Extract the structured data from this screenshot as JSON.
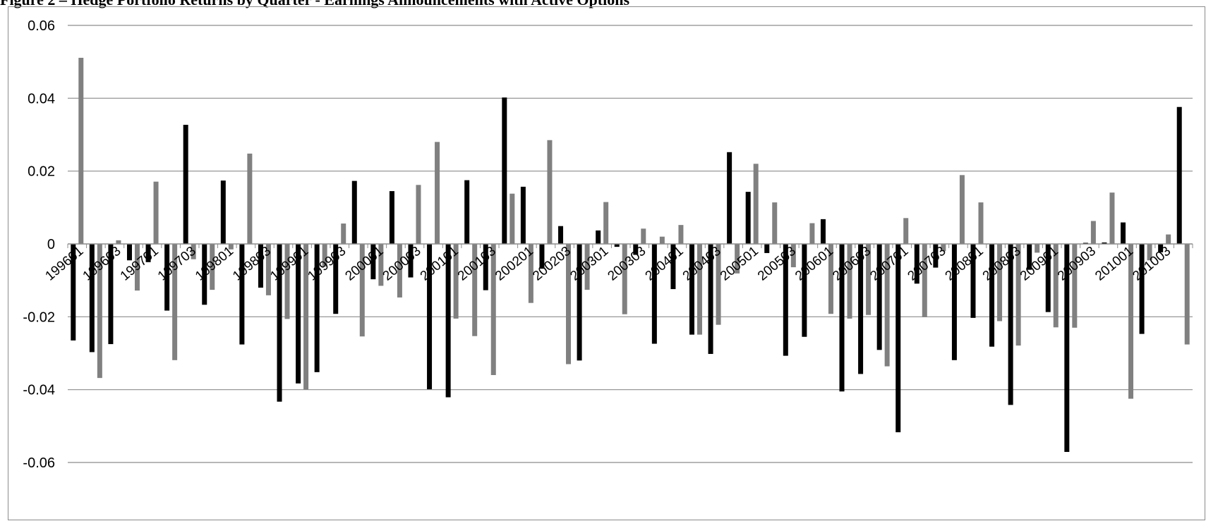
{
  "chart_data": {
    "type": "bar",
    "title": "Figure 2 – Hedge Portfolio Returns by Quarter - Earnings Announcements with Active Options",
    "xlabel": "",
    "ylabel": "",
    "ylim": [
      -0.06,
      0.06
    ],
    "y_ticks": [
      0.06,
      0.04,
      0.02,
      0,
      -0.02,
      -0.04,
      -0.06
    ],
    "y_tick_labels": [
      "0.06",
      "0.04",
      "0.02",
      "0",
      "-0.02",
      "-0.04",
      "-0.06"
    ],
    "grid": true,
    "legend": "none",
    "categories": [
      "199601",
      "199602",
      "199603",
      "199604",
      "199701",
      "199702",
      "199703",
      "199704",
      "199801",
      "199802",
      "199803",
      "199804",
      "199901",
      "199902",
      "199903",
      "199904",
      "200001",
      "200002",
      "200003",
      "200004",
      "200101",
      "200102",
      "200103",
      "200104",
      "200201",
      "200202",
      "200203",
      "200204",
      "200301",
      "200302",
      "200303",
      "200304",
      "200401",
      "200402",
      "200403",
      "200404",
      "200501",
      "200502",
      "200503",
      "200504",
      "200601",
      "200602",
      "200603",
      "200604",
      "200701",
      "200702",
      "200703",
      "200704",
      "200801",
      "200802",
      "200803",
      "200804",
      "200901",
      "200902",
      "200903",
      "200904",
      "201001",
      "201002",
      "201003",
      "201004"
    ],
    "x_tick_labels": [
      "199601",
      "199603",
      "199701",
      "199703",
      "199801",
      "199803",
      "199901",
      "199903",
      "200001",
      "200003",
      "200101",
      "200103",
      "200201",
      "200203",
      "200301",
      "200303",
      "200401",
      "200403",
      "200501",
      "200503",
      "200601",
      "200603",
      "200701",
      "200703",
      "200801",
      "200803",
      "200901",
      "200903",
      "201001",
      "201003"
    ],
    "series": [
      {
        "color": "#000000",
        "values": [
          -0.0265,
          -0.0297,
          -0.0275,
          -0.0045,
          -0.005,
          -0.0183,
          0.0327,
          -0.0167,
          0.0174,
          -0.0276,
          -0.012,
          -0.0433,
          -0.0383,
          -0.0352,
          -0.0192,
          0.0173,
          -0.0097,
          0.0145,
          -0.0092,
          -0.0399,
          -0.0421,
          0.0175,
          -0.0127,
          0.0402,
          0.0157,
          -0.0068,
          0.0049,
          -0.032,
          0.0037,
          -0.0008,
          -0.003,
          -0.0274,
          -0.0124,
          -0.0249,
          -0.0302,
          0.0252,
          0.0143,
          -0.0025,
          -0.0307,
          -0.0255,
          0.0068,
          -0.0405,
          -0.0357,
          -0.0291,
          -0.0517,
          -0.0109,
          -0.0065,
          -0.0319,
          -0.0203,
          -0.0282,
          -0.0442,
          -0.0071,
          -0.0187,
          -0.0571,
          0.0003,
          0.0004,
          0.0059,
          -0.0247,
          -0.0023,
          0.0376
        ]
      },
      {
        "color": "#808080",
        "values": [
          0.0511,
          -0.0368,
          0.001,
          -0.0128,
          0.0171,
          -0.0319,
          -0.0042,
          -0.0126,
          -0.0015,
          0.0248,
          -0.0141,
          -0.0206,
          -0.04,
          -0.0062,
          0.0056,
          -0.0254,
          -0.0115,
          -0.0147,
          0.0162,
          0.028,
          -0.0205,
          -0.0253,
          -0.036,
          0.0138,
          -0.0162,
          0.0285,
          -0.033,
          -0.0126,
          0.0115,
          -0.0193,
          0.0042,
          0.002,
          0.0052,
          -0.0249,
          -0.0222,
          -0.0081,
          0.022,
          0.0114,
          -0.0064,
          0.0057,
          -0.0192,
          -0.0205,
          -0.0195,
          -0.0336,
          0.0071,
          -0.0201,
          -0.002,
          0.0189,
          0.0114,
          -0.0212,
          -0.0279,
          -0.0024,
          -0.0229,
          -0.023,
          0.0063,
          0.0141,
          -0.0425,
          -0.0045,
          0.0026,
          -0.0276
        ]
      }
    ]
  }
}
